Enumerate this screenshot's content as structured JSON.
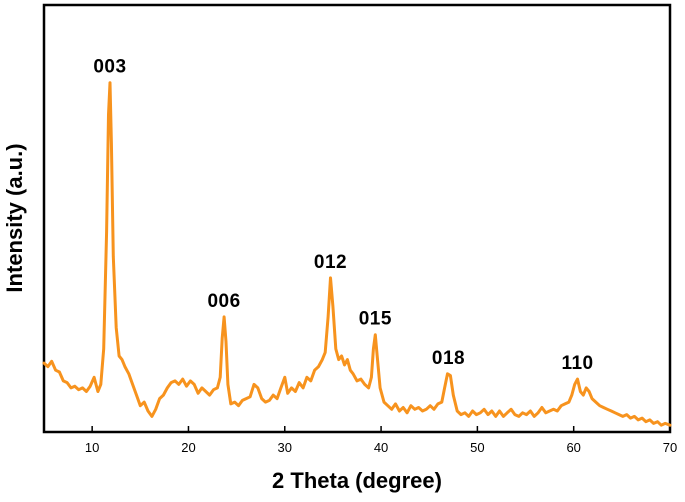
{
  "chart_data": {
    "type": "line",
    "title": "",
    "xlabel": "2 Theta (degree)",
    "ylabel": "Intensity (a.u.)",
    "xlim": [
      5,
      70
    ],
    "ylim": [
      0,
      100
    ],
    "grid": false,
    "legend": "none",
    "y_ticks_shown": false,
    "x_ticks": [
      10,
      20,
      30,
      40,
      50,
      60,
      70
    ],
    "line_color": "#F7931E",
    "series": [
      {
        "values": [
          [
            5.0,
            18
          ],
          [
            5.4,
            17
          ],
          [
            5.8,
            18.5
          ],
          [
            6.2,
            16
          ],
          [
            6.6,
            15.5
          ],
          [
            7.0,
            13
          ],
          [
            7.4,
            12.5
          ],
          [
            7.8,
            11
          ],
          [
            8.2,
            11.5
          ],
          [
            8.6,
            10.5
          ],
          [
            9.0,
            11
          ],
          [
            9.4,
            10
          ],
          [
            9.8,
            11.5
          ],
          [
            10.2,
            14
          ],
          [
            10.6,
            10
          ],
          [
            10.9,
            12
          ],
          [
            11.2,
            22
          ],
          [
            11.5,
            55
          ],
          [
            11.7,
            88
          ],
          [
            11.85,
            97
          ],
          [
            12.0,
            80
          ],
          [
            12.2,
            48
          ],
          [
            12.5,
            28
          ],
          [
            12.8,
            20
          ],
          [
            13.1,
            19
          ],
          [
            13.4,
            17
          ],
          [
            13.8,
            15
          ],
          [
            14.2,
            12
          ],
          [
            14.6,
            9
          ],
          [
            15.0,
            6
          ],
          [
            15.4,
            7
          ],
          [
            15.8,
            4.5
          ],
          [
            16.2,
            3
          ],
          [
            16.6,
            5
          ],
          [
            17.0,
            8
          ],
          [
            17.4,
            9
          ],
          [
            17.8,
            11
          ],
          [
            18.2,
            12.5
          ],
          [
            18.6,
            13
          ],
          [
            19.0,
            12
          ],
          [
            19.4,
            13.5
          ],
          [
            19.8,
            11.5
          ],
          [
            20.2,
            13
          ],
          [
            20.6,
            12
          ],
          [
            21.0,
            9.5
          ],
          [
            21.4,
            11
          ],
          [
            21.8,
            10
          ],
          [
            22.2,
            9
          ],
          [
            22.6,
            10.5
          ],
          [
            23.0,
            11
          ],
          [
            23.3,
            14
          ],
          [
            23.5,
            25
          ],
          [
            23.7,
            31
          ],
          [
            23.9,
            24
          ],
          [
            24.1,
            12
          ],
          [
            24.4,
            6.5
          ],
          [
            24.8,
            7
          ],
          [
            25.2,
            6
          ],
          [
            25.6,
            7.5
          ],
          [
            26.0,
            8
          ],
          [
            26.4,
            8.5
          ],
          [
            26.8,
            12
          ],
          [
            27.2,
            11
          ],
          [
            27.6,
            8
          ],
          [
            28.0,
            7
          ],
          [
            28.4,
            7.5
          ],
          [
            28.8,
            9
          ],
          [
            29.2,
            8
          ],
          [
            29.6,
            11
          ],
          [
            30.0,
            14
          ],
          [
            30.3,
            9.5
          ],
          [
            30.7,
            11
          ],
          [
            31.1,
            10
          ],
          [
            31.5,
            12.5
          ],
          [
            31.9,
            11
          ],
          [
            32.3,
            14
          ],
          [
            32.7,
            13
          ],
          [
            33.1,
            16
          ],
          [
            33.5,
            17
          ],
          [
            33.9,
            19
          ],
          [
            34.2,
            21
          ],
          [
            34.5,
            31
          ],
          [
            34.75,
            42
          ],
          [
            35.0,
            34
          ],
          [
            35.3,
            22
          ],
          [
            35.6,
            19
          ],
          [
            35.9,
            20
          ],
          [
            36.2,
            17.5
          ],
          [
            36.5,
            19
          ],
          [
            36.8,
            16
          ],
          [
            37.1,
            15
          ],
          [
            37.5,
            13
          ],
          [
            37.9,
            13.5
          ],
          [
            38.3,
            12
          ],
          [
            38.7,
            11
          ],
          [
            39.0,
            14
          ],
          [
            39.2,
            22
          ],
          [
            39.4,
            26
          ],
          [
            39.6,
            20
          ],
          [
            39.9,
            11
          ],
          [
            40.3,
            7
          ],
          [
            40.7,
            6
          ],
          [
            41.1,
            5
          ],
          [
            41.5,
            6.5
          ],
          [
            41.9,
            4.5
          ],
          [
            42.3,
            5.5
          ],
          [
            42.7,
            4
          ],
          [
            43.1,
            6
          ],
          [
            43.5,
            5
          ],
          [
            43.9,
            5.5
          ],
          [
            44.3,
            4.5
          ],
          [
            44.7,
            5
          ],
          [
            45.1,
            6
          ],
          [
            45.5,
            5
          ],
          [
            45.9,
            6.5
          ],
          [
            46.3,
            7
          ],
          [
            46.6,
            11
          ],
          [
            46.9,
            15
          ],
          [
            47.2,
            14.5
          ],
          [
            47.5,
            9
          ],
          [
            47.9,
            4.5
          ],
          [
            48.3,
            3.5
          ],
          [
            48.7,
            4
          ],
          [
            49.1,
            3
          ],
          [
            49.5,
            4.5
          ],
          [
            49.9,
            3.5
          ],
          [
            50.3,
            4
          ],
          [
            50.7,
            5
          ],
          [
            51.1,
            3.5
          ],
          [
            51.5,
            4.5
          ],
          [
            51.9,
            3
          ],
          [
            52.3,
            4.5
          ],
          [
            52.7,
            3
          ],
          [
            53.1,
            4
          ],
          [
            53.5,
            5
          ],
          [
            53.9,
            3.5
          ],
          [
            54.3,
            3
          ],
          [
            54.7,
            4
          ],
          [
            55.1,
            3.5
          ],
          [
            55.5,
            4.5
          ],
          [
            55.9,
            3
          ],
          [
            56.3,
            4
          ],
          [
            56.7,
            5.5
          ],
          [
            57.1,
            4
          ],
          [
            57.5,
            4.5
          ],
          [
            57.9,
            5
          ],
          [
            58.3,
            4.5
          ],
          [
            58.7,
            6
          ],
          [
            59.1,
            6.5
          ],
          [
            59.5,
            7
          ],
          [
            59.8,
            9
          ],
          [
            60.1,
            12
          ],
          [
            60.4,
            13.5
          ],
          [
            60.7,
            10
          ],
          [
            61.0,
            9
          ],
          [
            61.3,
            11
          ],
          [
            61.6,
            10
          ],
          [
            61.9,
            8
          ],
          [
            62.3,
            7
          ],
          [
            62.7,
            6
          ],
          [
            63.1,
            5.5
          ],
          [
            63.5,
            5
          ],
          [
            63.9,
            4.5
          ],
          [
            64.3,
            4
          ],
          [
            64.7,
            3.5
          ],
          [
            65.1,
            3
          ],
          [
            65.5,
            3.5
          ],
          [
            65.9,
            2.5
          ],
          [
            66.3,
            3
          ],
          [
            66.7,
            2
          ],
          [
            67.1,
            2.5
          ],
          [
            67.5,
            1.5
          ],
          [
            67.9,
            2
          ],
          [
            68.3,
            1
          ],
          [
            68.7,
            1.5
          ],
          [
            69.1,
            0.5
          ],
          [
            69.5,
            1
          ],
          [
            70.0,
            0.5
          ]
        ]
      }
    ],
    "annotations": [
      {
        "text": "003",
        "x": 11.85,
        "y": 97
      },
      {
        "text": "006",
        "x": 23.7,
        "y": 31
      },
      {
        "text": "012",
        "x": 34.75,
        "y": 42
      },
      {
        "text": "015",
        "x": 39.4,
        "y": 26
      },
      {
        "text": "018",
        "x": 47.0,
        "y": 15
      },
      {
        "text": "110",
        "x": 60.4,
        "y": 13.5
      }
    ]
  }
}
